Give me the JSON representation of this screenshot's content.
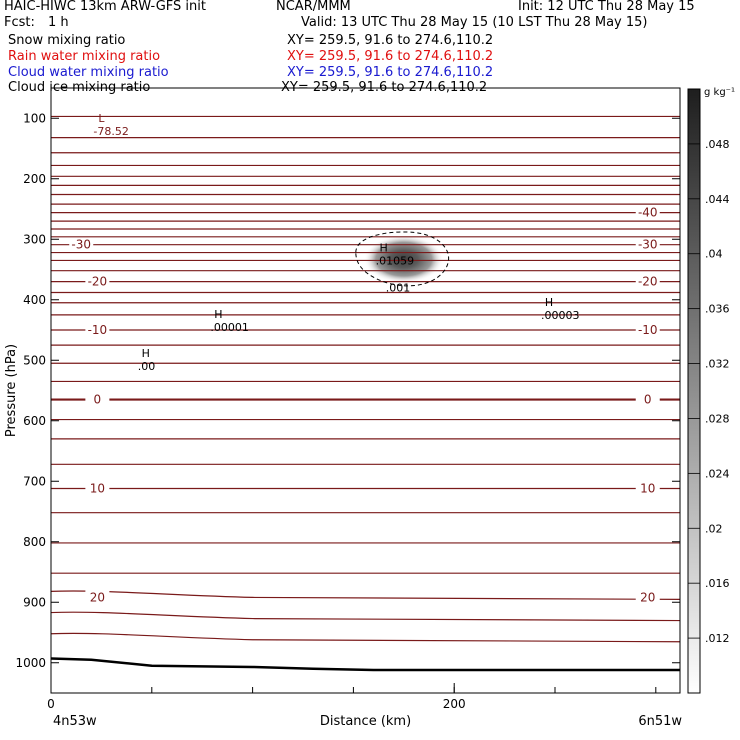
{
  "header": {
    "title": "HAIC-HIWC 13km ARW-GFS init",
    "org": "NCAR/MMM",
    "init": "Init: 12 UTC Thu 28 May 15",
    "fcst_label": "Fcst:",
    "fcst_value": "1 h",
    "valid": "Valid: 13 UTC Thu 28 May 15 (10 LST Thu 28 May 15)",
    "fields": [
      {
        "label": "Snow mixing ratio",
        "xy": "XY= 259.5, 91.6 to 274.6,110.2",
        "color": "#000000"
      },
      {
        "label": "Rain water mixing ratio",
        "xy": "XY= 259.5, 91.6 to 274.6,110.2",
        "color": "#e01010"
      },
      {
        "label": "Cloud water mixing ratio",
        "xy": "XY= 259.5, 91.6 to 274.6,110.2",
        "color": "#1a1ad0"
      },
      {
        "label": "Cloud ice mixing ratio",
        "xy": "XY= 259.5, 91.6 to 274.6,110.2",
        "color": "#000000"
      }
    ]
  },
  "chart_data": {
    "type": "heatmap",
    "xlabel": "Distance (km)",
    "ylabel": "Pressure (hPa)",
    "xlim": [
      0,
      312
    ],
    "ylim": [
      1050,
      50
    ],
    "x_ticks": [
      0,
      200
    ],
    "y_ticks": [
      100,
      200,
      300,
      400,
      500,
      600,
      700,
      800,
      900,
      1000
    ],
    "x_end_labels": {
      "left": "4n53w",
      "right": "6n51w"
    },
    "colorbar": {
      "unit": "g kg⁻¹",
      "ticks": [
        ".012",
        ".016",
        ".02",
        ".024",
        ".028",
        ".032",
        ".036",
        ".04",
        ".044",
        ".048"
      ],
      "range": [
        0.008,
        0.052
      ]
    },
    "shaded_max": {
      "x": 175,
      "p": 333,
      "value": 0.01059
    },
    "theta_contours": {
      "color": "#7a1a1a",
      "levels_p": [
        97,
        132,
        157,
        178,
        196,
        211,
        226,
        242,
        256,
        270,
        283,
        296,
        309,
        322,
        335,
        352,
        370,
        388,
        405,
        425,
        450,
        475,
        505,
        535,
        565,
        598,
        630,
        672,
        712,
        752,
        802,
        852,
        892,
        927,
        962
      ],
      "labels": [
        {
          "text": "-30",
          "x": 15,
          "p": 309,
          "level": 12
        },
        {
          "text": "-30",
          "x": 296,
          "p": 309,
          "level": 12
        },
        {
          "text": "-40",
          "x": 296,
          "p": 256,
          "level": 8
        },
        {
          "text": "-20",
          "x": 23,
          "p": 370,
          "level": 16
        },
        {
          "text": "-20",
          "x": 296,
          "p": 370,
          "level": 16
        },
        {
          "text": "-10",
          "x": 23,
          "p": 450,
          "level": 20
        },
        {
          "text": "-10",
          "x": 296,
          "p": 450,
          "level": 20
        },
        {
          "text": "0",
          "x": 23,
          "p": 565,
          "level": 24
        },
        {
          "text": "0",
          "x": 296,
          "p": 565,
          "level": 24
        },
        {
          "text": "10",
          "x": 23,
          "p": 712,
          "level": 28
        },
        {
          "text": "10",
          "x": 296,
          "p": 712,
          "level": 28
        },
        {
          "text": "20",
          "x": 23,
          "p": 892,
          "level": 32
        },
        {
          "text": "20",
          "x": 296,
          "p": 892,
          "level": 32
        }
      ]
    },
    "terrain": [
      [
        0,
        993
      ],
      [
        20,
        995
      ],
      [
        50,
        1005
      ],
      [
        100,
        1007
      ],
      [
        130,
        1010
      ],
      [
        160,
        1012
      ],
      [
        230,
        1012
      ],
      [
        312,
        1012
      ]
    ],
    "contour_001": {
      "label": ".001",
      "x": 175,
      "p": 335
    },
    "markers": [
      {
        "symbol": "L",
        "value": "-78.52",
        "x": 25,
        "p": 106,
        "color": "#7a1a1a"
      },
      {
        "symbol": "H",
        "value": ".01059",
        "x": 165,
        "p": 320,
        "color": "#000000"
      },
      {
        "symbol": "H",
        "value": ".00003",
        "x": 247,
        "p": 410,
        "color": "#000000"
      },
      {
        "symbol": "H",
        "value": ".00001",
        "x": 83,
        "p": 430,
        "color": "#000000"
      },
      {
        "symbol": "H",
        "value": ".00",
        "x": 47,
        "p": 495,
        "color": "#000000"
      }
    ]
  }
}
